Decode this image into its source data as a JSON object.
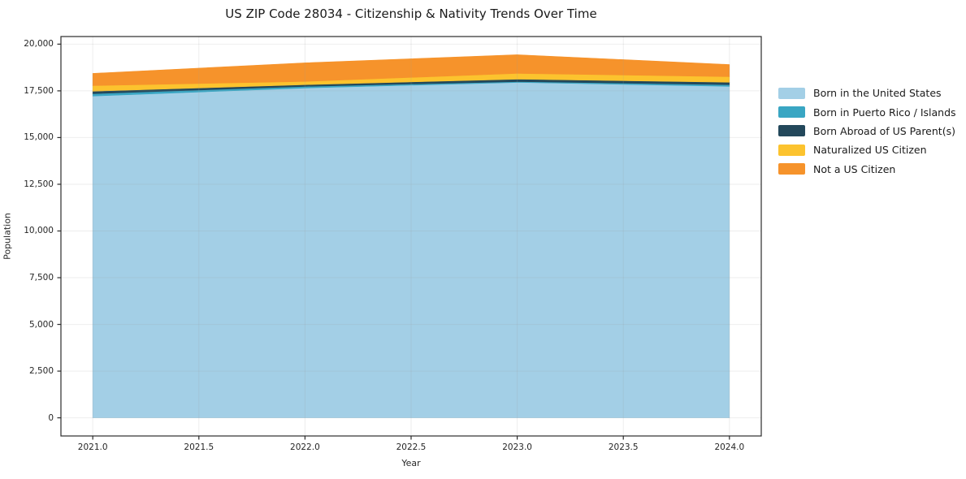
{
  "chart_data": {
    "type": "area",
    "stacked": true,
    "title": "US ZIP Code 28034 - Citizenship & Nativity Trends Over Time",
    "xlabel": "Year",
    "ylabel": "Population",
    "x": [
      2021,
      2022,
      2023,
      2024
    ],
    "series": [
      {
        "name": "Born in the United States",
        "color": "#a3cfe6",
        "values": [
          17220,
          17650,
          17950,
          17740
        ]
      },
      {
        "name": "Born in Puerto Rico / Islands",
        "color": "#39a6c3",
        "values": [
          130,
          90,
          45,
          90
        ]
      },
      {
        "name": "Born Abroad of US Parent(s)",
        "color": "#23485b",
        "values": [
          130,
          90,
          130,
          130
        ]
      },
      {
        "name": "Naturalized US Citizen",
        "color": "#fcc32e",
        "values": [
          300,
          175,
          310,
          300
        ]
      },
      {
        "name": "Not a US Citizen",
        "color": "#f6932b",
        "values": [
          655,
          995,
          1000,
          650
        ]
      }
    ],
    "stacked_totals": [
      18435,
      19000,
      19435,
      18910
    ],
    "xlim": [
      2020.85,
      2024.15
    ],
    "ylim": [
      -972,
      20407
    ],
    "xticks": {
      "values": [
        2021.0,
        2021.5,
        2022.0,
        2022.5,
        2023.0,
        2023.5,
        2024.0
      ],
      "labels": [
        "2021.0",
        "2021.5",
        "2022.0",
        "2022.5",
        "2023.0",
        "2023.5",
        "2024.0"
      ]
    },
    "yticks": {
      "values": [
        0,
        2500,
        5000,
        7500,
        10000,
        12500,
        15000,
        17500,
        20000
      ],
      "labels": [
        "0",
        "2,500",
        "5,000",
        "7,500",
        "10,000",
        "12,500",
        "15,000",
        "17,500",
        "20,000"
      ]
    },
    "grid": true,
    "legend_position": "right",
    "axis_color": "#2b2b2b",
    "grid_color": "#999999",
    "background_color": "#ffffff"
  }
}
